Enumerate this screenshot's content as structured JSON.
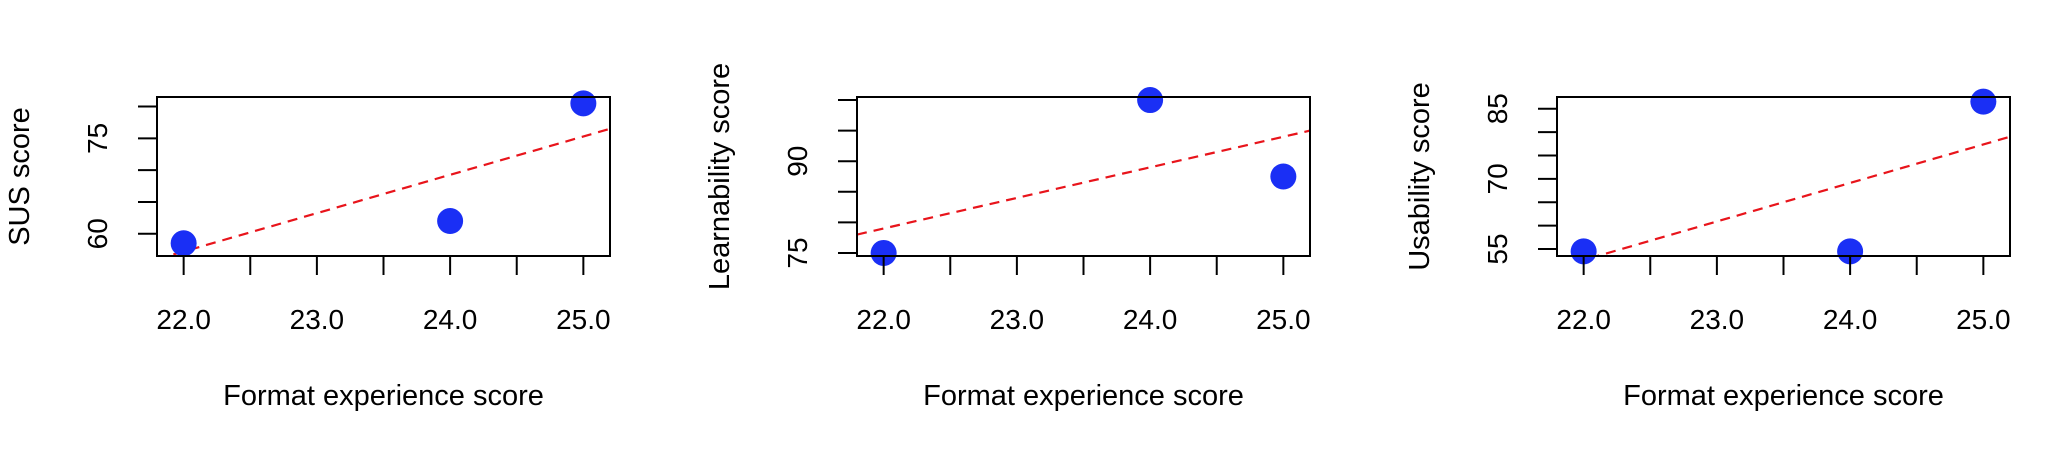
{
  "chart_data": [
    {
      "type": "scatter",
      "xlabel": "Format experience score",
      "ylabel": "SUS score",
      "x": [
        22.0,
        24.0,
        25.0
      ],
      "y": [
        58.5,
        62,
        80.5
      ],
      "xlim": [
        21.8,
        25.2
      ],
      "ylim": [
        56.5,
        81.5
      ],
      "x_ticks": [
        22,
        22.5,
        23,
        23.5,
        24,
        24.5,
        25
      ],
      "x_tick_labels": [
        "22.0",
        "23.0",
        "24.0",
        "25.0"
      ],
      "x_tick_label_values": [
        22,
        23,
        24,
        25
      ],
      "y_ticks": [
        60,
        65,
        70,
        75,
        80
      ],
      "y_tick_labels": [
        "60",
        "75"
      ],
      "y_tick_label_values": [
        60,
        75
      ],
      "fit_line": {
        "x": [
          21.8,
          25.2
        ],
        "y": [
          56.0,
          76.5
        ]
      }
    },
    {
      "type": "scatter",
      "xlabel": "Format experience score",
      "ylabel": "Learnability score",
      "x": [
        22.0,
        24.0,
        25.0
      ],
      "y": [
        75,
        100,
        87.5
      ],
      "xlim": [
        21.8,
        25.2
      ],
      "ylim": [
        74.5,
        100.5
      ],
      "x_ticks": [
        22,
        22.5,
        23,
        23.5,
        24,
        24.5,
        25
      ],
      "x_tick_labels": [
        "22.0",
        "23.0",
        "24.0",
        "25.0"
      ],
      "x_tick_label_values": [
        22,
        23,
        24,
        25
      ],
      "y_ticks": [
        75,
        80,
        85,
        90,
        95,
        100
      ],
      "y_tick_labels": [
        "75",
        "90"
      ],
      "y_tick_label_values": [
        75,
        90
      ],
      "fit_line": {
        "x": [
          21.8,
          25.2
        ],
        "y": [
          78.0,
          95.0
        ]
      }
    },
    {
      "type": "scatter",
      "xlabel": "Format experience score",
      "ylabel": "Usability score",
      "x": [
        22.0,
        24.0,
        25.0
      ],
      "y": [
        54.5,
        54.5,
        86.5
      ],
      "xlim": [
        21.8,
        25.2
      ],
      "ylim": [
        53.5,
        87.5
      ],
      "x_ticks": [
        22,
        22.5,
        23,
        23.5,
        24,
        24.5,
        25
      ],
      "x_tick_labels": [
        "22.0",
        "23.0",
        "24.0",
        "25.0"
      ],
      "x_tick_label_values": [
        22,
        23,
        24,
        25
      ],
      "y_ticks": [
        55,
        60,
        65,
        70,
        75,
        80,
        85
      ],
      "y_tick_labels": [
        "55",
        "70",
        "85"
      ],
      "y_tick_label_values": [
        55,
        70,
        85
      ],
      "fit_line": {
        "x": [
          21.8,
          25.2
        ],
        "y": [
          51.0,
          79.0
        ]
      }
    }
  ],
  "colors": {
    "point": "#1a2ff5",
    "fit_line": "#e8141b",
    "axis": "#000000"
  }
}
